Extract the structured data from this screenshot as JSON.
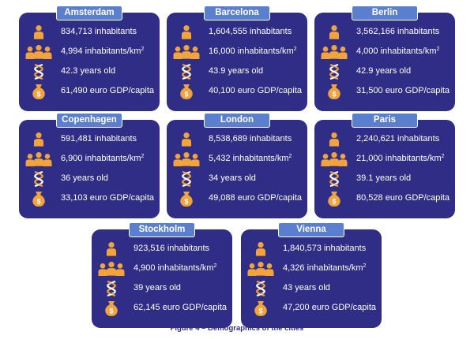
{
  "caption": "Figure 4 – Demographics of the cities",
  "colors": {
    "card": "#2f2d85",
    "tab": "#5b7fcf",
    "icon": "#f2a33a"
  },
  "icons": {
    "inhabitants": "person-icon",
    "density": "people-group-icon",
    "age": "dna-icon",
    "gdp": "money-bag-icon"
  },
  "cities": [
    {
      "name": "Amsterdam",
      "inhabitants": "834,713 inhabitants",
      "density": "4,994 inhabitants/km",
      "age": "42.3 years old",
      "gdp": "61,490 euro GDP/capita"
    },
    {
      "name": "Barcelona",
      "inhabitants": "1,604,555 inhabitants",
      "density": "16,000 inhabitants/km",
      "age": "43.9 years old",
      "gdp": "40,100 euro GDP/capita"
    },
    {
      "name": "Berlin",
      "inhabitants": "3,562,166 inhabitants",
      "density": "4,000 inhabitants/km",
      "age": "42.9 years old",
      "gdp": "31,500 euro GDP/capita"
    },
    {
      "name": "Copenhagen",
      "inhabitants": "591,481 inhabitants",
      "density": "6,900 inhabitants/km",
      "age": "36 years old",
      "gdp": "33,103 euro GDP/capita"
    },
    {
      "name": "London",
      "inhabitants": "8,538,689 inhabitants",
      "density": "5,432 inhabitants/km",
      "age": "34 years old",
      "gdp": "49,088 euro GDP/capita"
    },
    {
      "name": "Paris",
      "inhabitants": "2,240,621 inhabitants",
      "density": "21,000 inhabitants/km",
      "age": "39.1 years old",
      "gdp": "80,528 euro GDP/capita"
    },
    {
      "name": "Stockholm",
      "inhabitants": "923,516 inhabitants",
      "density": "4,900 inhabitants/km",
      "age": "39 years old",
      "gdp": "62,145 euro GDP/capita"
    },
    {
      "name": "Vienna",
      "inhabitants": "1,840,573 inhabitants",
      "density": "4,326 inhabitants/km",
      "age": "43 years old",
      "gdp": "47,200 euro GDP/capita"
    }
  ],
  "density_sup": "2"
}
